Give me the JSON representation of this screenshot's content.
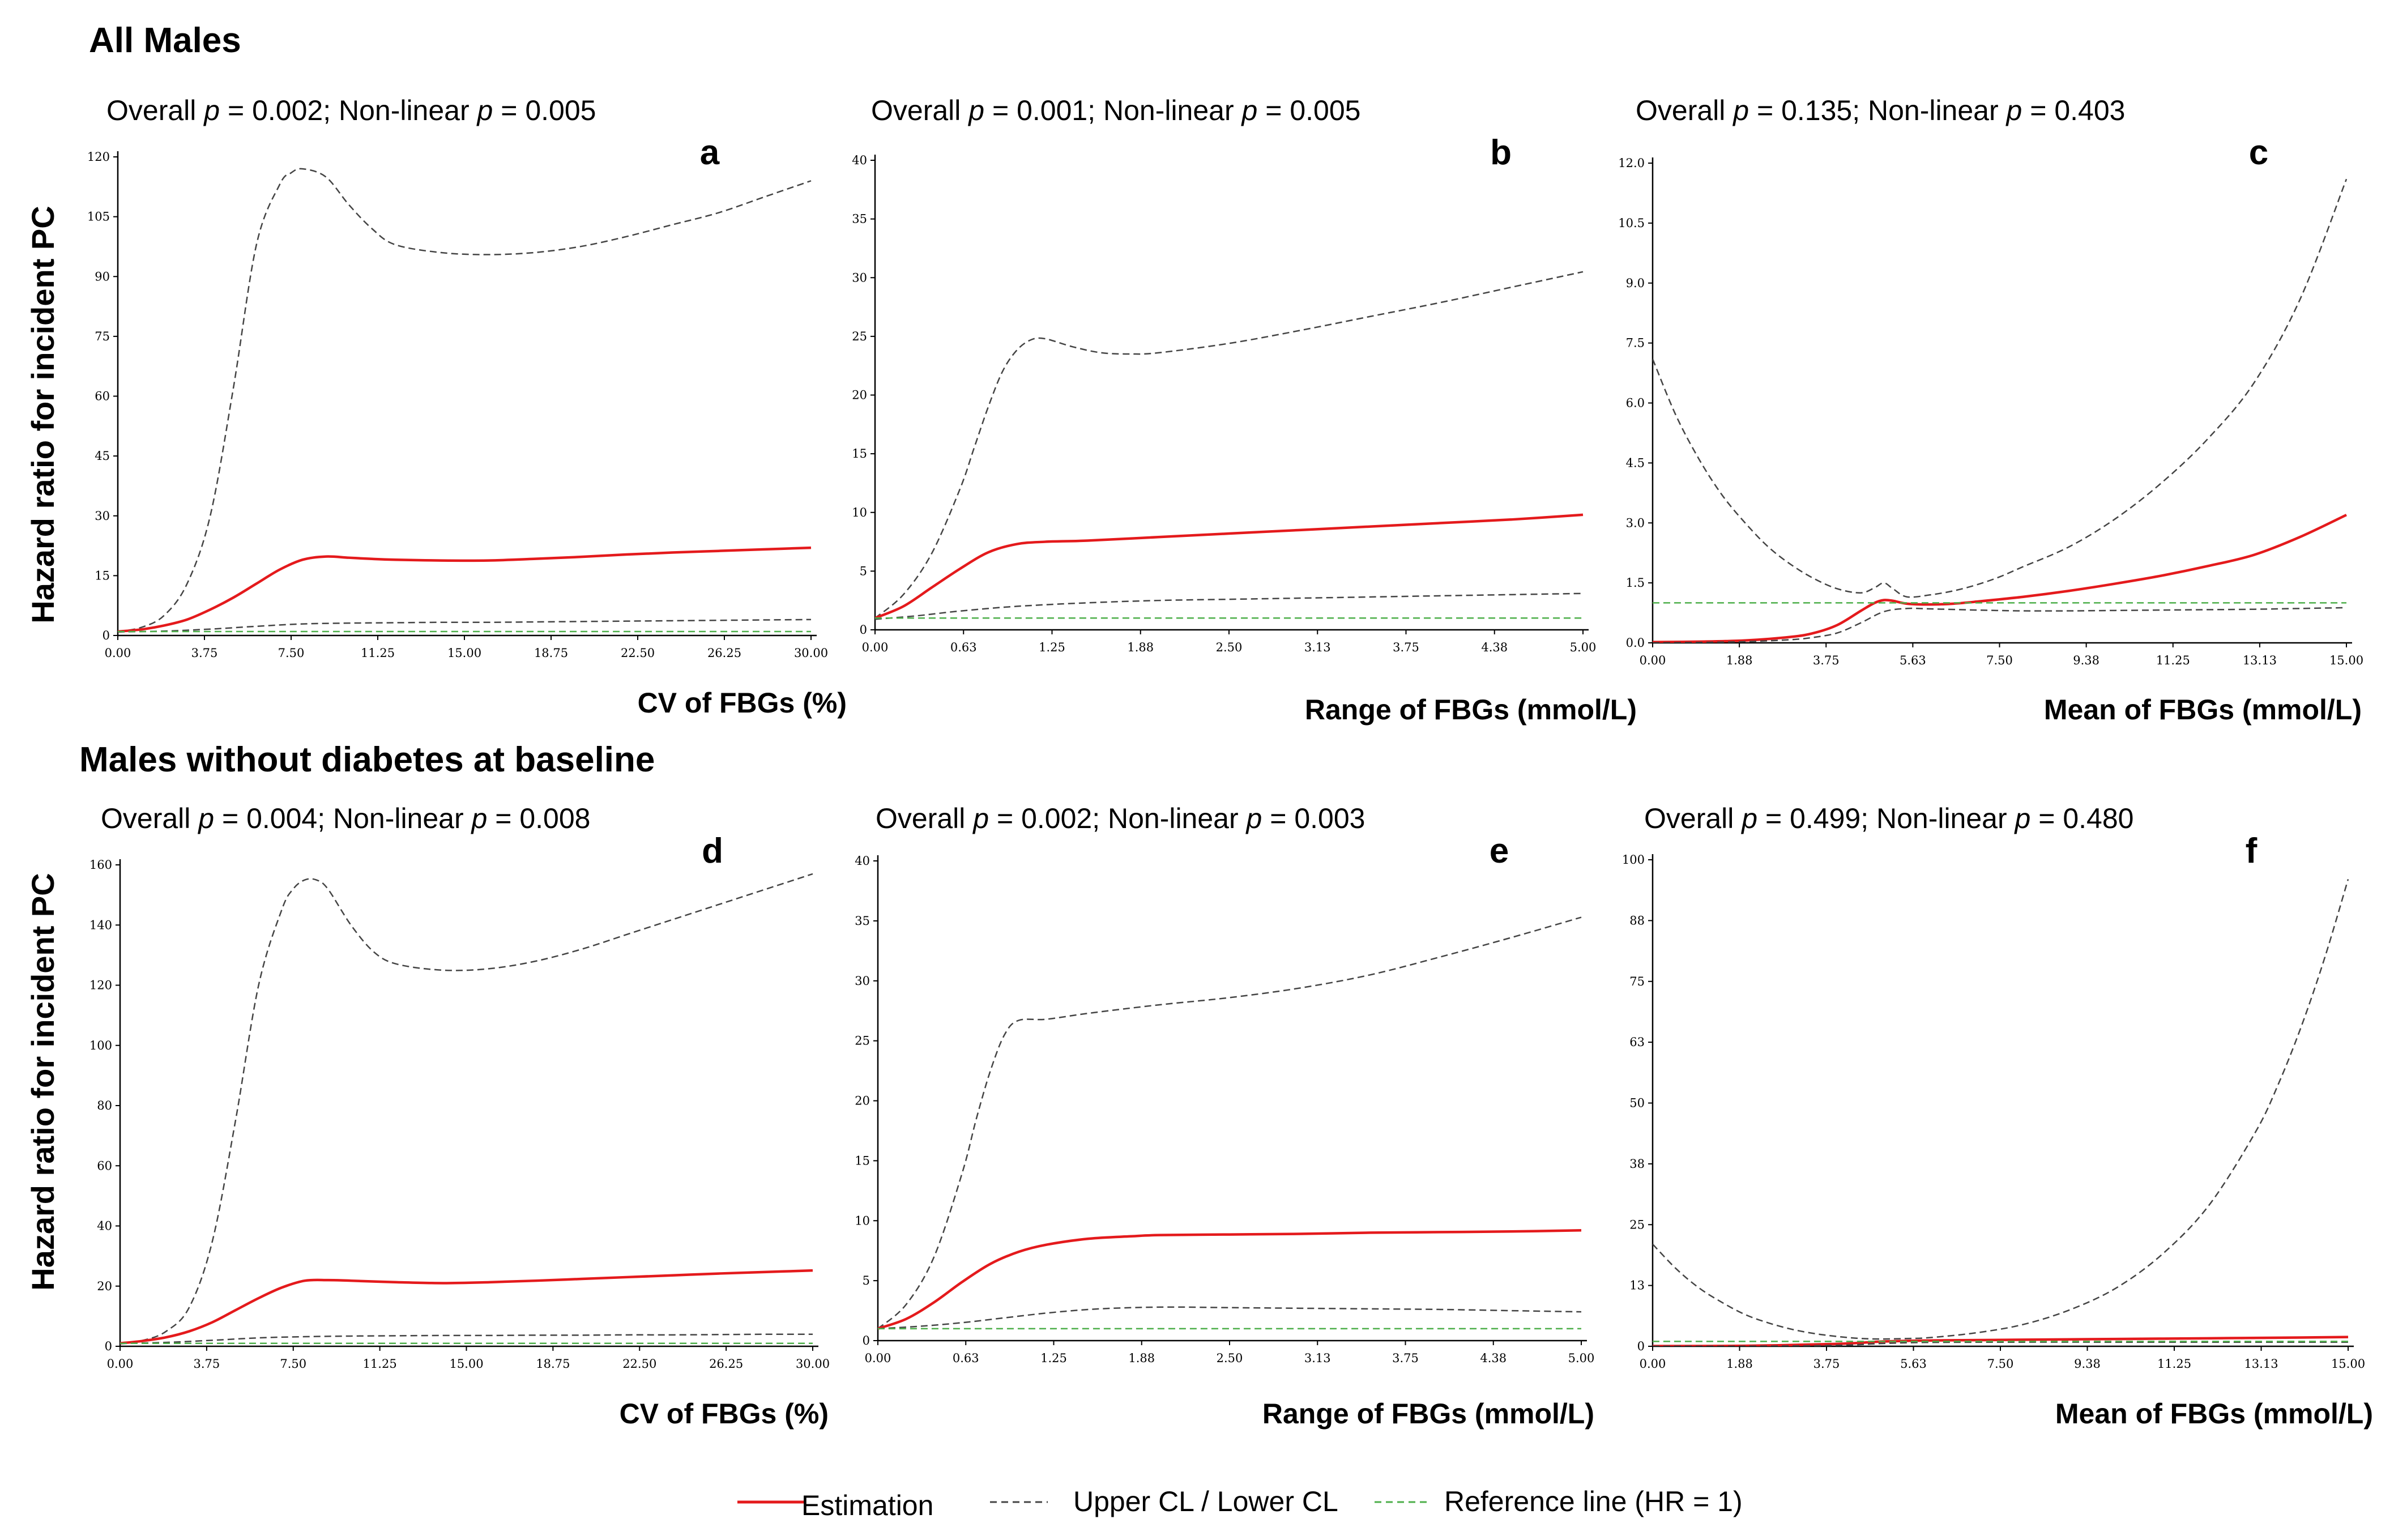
{
  "sections": {
    "top": "All Males",
    "bottom": "Males without diabetes at baseline"
  },
  "ylabel": "Hazard ratio for incident PC",
  "legend": {
    "estimation": "Estimation",
    "cl": "Upper CL / Lower CL",
    "reference": "Reference line (HR = 1)"
  },
  "colors": {
    "estimation": "#e41a1c",
    "cl": "#444444",
    "reference": "#4daf4a",
    "axis": "#000000"
  },
  "chart_data": [
    {
      "id": "a",
      "type": "line",
      "letter": "a",
      "p_overall": "0.002",
      "p_nonlinear": "0.005",
      "xlabel": "CV of FBGs (%)",
      "ylabel": "Hazard ratio for incident PC",
      "xlim": [
        0,
        30
      ],
      "ylim": [
        0,
        120
      ],
      "xticks": [
        "0.00",
        "3.75",
        "7.50",
        "11.25",
        "15.00",
        "18.75",
        "22.50",
        "26.25",
        "30.00"
      ],
      "yticks": [
        "0",
        "15",
        "30",
        "45",
        "60",
        "75",
        "90",
        "105",
        "120"
      ],
      "series": [
        {
          "name": "Upper CL",
          "x": [
            0,
            1,
            2,
            3,
            4,
            5,
            6,
            7,
            7.5,
            8,
            9,
            10,
            11,
            12,
            14,
            16,
            18,
            20,
            22,
            24,
            26,
            28,
            30
          ],
          "y": [
            1,
            2,
            5,
            13,
            30,
            62,
            98,
            113,
            116,
            117,
            115,
            108,
            102,
            98,
            96,
            95.5,
            96,
            97.5,
            100,
            103,
            106,
            110,
            114
          ]
        },
        {
          "name": "Estimation",
          "x": [
            0,
            1,
            2,
            3,
            4,
            5,
            6,
            7,
            8,
            9,
            10,
            11,
            12,
            14,
            16,
            18,
            20,
            22,
            24,
            26,
            28,
            30
          ],
          "y": [
            1,
            1.5,
            2.5,
            4,
            6.5,
            9.5,
            13,
            16.5,
            19,
            19.8,
            19.5,
            19.2,
            19,
            18.8,
            18.8,
            19.2,
            19.7,
            20.3,
            20.8,
            21.2,
            21.6,
            22
          ]
        },
        {
          "name": "Lower CL",
          "x": [
            0,
            2,
            4,
            6,
            8,
            10,
            12,
            14,
            16,
            18,
            20,
            22,
            24,
            26,
            28,
            30
          ],
          "y": [
            0.9,
            1.1,
            1.6,
            2.3,
            2.9,
            3.1,
            3.2,
            3.3,
            3.3,
            3.4,
            3.5,
            3.6,
            3.7,
            3.8,
            3.9,
            4
          ]
        },
        {
          "name": "Reference line (HR = 1)",
          "x": [
            0,
            30
          ],
          "y": [
            1,
            1
          ]
        }
      ]
    },
    {
      "id": "b",
      "type": "line",
      "letter": "b",
      "p_overall": "0.001",
      "p_nonlinear": "0.005",
      "xlabel": "Range of FBGs (mmol/L)",
      "ylabel": "Hazard ratio for incident PC",
      "xlim": [
        0,
        5
      ],
      "ylim": [
        0,
        40
      ],
      "xticks": [
        "0.00",
        "0.63",
        "1.25",
        "1.88",
        "2.50",
        "3.13",
        "3.75",
        "4.38",
        "5.00"
      ],
      "yticks": [
        "0",
        "5",
        "10",
        "15",
        "20",
        "25",
        "30",
        "35",
        "40"
      ],
      "series": [
        {
          "name": "Upper CL",
          "x": [
            0,
            0.2,
            0.4,
            0.6,
            0.7,
            0.8,
            0.9,
            1.0,
            1.1,
            1.2,
            1.4,
            1.6,
            1.8,
            2.0,
            2.5,
            3.0,
            3.5,
            4.0,
            4.5,
            5.0
          ],
          "y": [
            1,
            3,
            6.5,
            12,
            15.5,
            19,
            22,
            23.8,
            24.7,
            24.8,
            24.1,
            23.6,
            23.5,
            23.6,
            24.4,
            25.5,
            26.7,
            27.9,
            29.2,
            30.5
          ]
        },
        {
          "name": "Estimation",
          "x": [
            0,
            0.2,
            0.4,
            0.6,
            0.8,
            1.0,
            1.2,
            1.5,
            2.0,
            2.5,
            3.0,
            3.5,
            4.0,
            4.5,
            5.0
          ],
          "y": [
            1,
            2,
            3.6,
            5.2,
            6.6,
            7.3,
            7.5,
            7.6,
            7.9,
            8.2,
            8.5,
            8.8,
            9.1,
            9.4,
            9.8
          ]
        },
        {
          "name": "Lower CL",
          "x": [
            0,
            0.3,
            0.6,
            1.0,
            1.5,
            2.0,
            2.5,
            3.0,
            3.5,
            4.0,
            4.5,
            5.0
          ],
          "y": [
            0.9,
            1.2,
            1.6,
            2,
            2.3,
            2.5,
            2.6,
            2.7,
            2.8,
            2.9,
            3,
            3.1
          ]
        },
        {
          "name": "Reference line (HR = 1)",
          "x": [
            0,
            5
          ],
          "y": [
            1,
            1
          ]
        }
      ]
    },
    {
      "id": "c",
      "type": "line",
      "letter": "c",
      "p_overall": "0.135",
      "p_nonlinear": "0.403",
      "xlabel": "Mean of FBGs (mmol/L)",
      "ylabel": "Hazard ratio for incident PC",
      "xlim": [
        0,
        15
      ],
      "ylim": [
        0,
        12
      ],
      "xticks": [
        "0.00",
        "1.88",
        "3.75",
        "5.63",
        "7.50",
        "9.38",
        "11.25",
        "13.13",
        "15.00"
      ],
      "yticks": [
        "0.0",
        "1.5",
        "3.0",
        "4.5",
        "6.0",
        "7.5",
        "9.0",
        "10.5",
        "12.0"
      ],
      "series": [
        {
          "name": "Upper CL",
          "x": [
            0,
            0.5,
            1,
            1.5,
            2,
            2.5,
            3,
            3.5,
            4,
            4.5,
            4.8,
            5.0,
            5.2,
            5.5,
            6,
            6.5,
            7,
            7.5,
            8,
            9,
            10,
            11,
            12,
            13,
            14,
            15
          ],
          "y": [
            7.1,
            5.7,
            4.6,
            3.7,
            3.0,
            2.4,
            1.95,
            1.6,
            1.35,
            1.25,
            1.38,
            1.5,
            1.35,
            1.15,
            1.2,
            1.3,
            1.45,
            1.65,
            1.9,
            2.4,
            3.1,
            4.0,
            5.1,
            6.5,
            8.6,
            11.6
          ]
        },
        {
          "name": "Estimation",
          "x": [
            0,
            1,
            2,
            3,
            3.5,
            4,
            4.5,
            4.8,
            5.0,
            5.2,
            5.5,
            6,
            6.5,
            7,
            8,
            9,
            10,
            11,
            12,
            13,
            14,
            15
          ],
          "y": [
            0.02,
            0.03,
            0.06,
            0.15,
            0.25,
            0.45,
            0.8,
            1.0,
            1.07,
            1.05,
            0.98,
            0.96,
            0.98,
            1.03,
            1.15,
            1.3,
            1.48,
            1.68,
            1.92,
            2.2,
            2.65,
            3.2
          ]
        },
        {
          "name": "Lower CL",
          "x": [
            0,
            1,
            2,
            3,
            3.5,
            4,
            4.5,
            5.0,
            5.5,
            6,
            7,
            8,
            9,
            10,
            11,
            12,
            13,
            14,
            15
          ],
          "y": [
            0,
            0.01,
            0.03,
            0.08,
            0.14,
            0.25,
            0.5,
            0.78,
            0.86,
            0.85,
            0.82,
            0.8,
            0.8,
            0.81,
            0.82,
            0.83,
            0.84,
            0.86,
            0.88
          ]
        },
        {
          "name": "Reference line (HR = 1)",
          "x": [
            0,
            15
          ],
          "y": [
            1,
            1
          ]
        }
      ]
    },
    {
      "id": "d",
      "type": "line",
      "letter": "d",
      "p_overall": "0.004",
      "p_nonlinear": "0.008",
      "xlabel": "CV of FBGs (%)",
      "ylabel": "Hazard ratio for incident PC",
      "xlim": [
        0,
        30
      ],
      "ylim": [
        0,
        160
      ],
      "xticks": [
        "0.00",
        "3.75",
        "7.50",
        "11.25",
        "15.00",
        "18.75",
        "22.50",
        "26.25",
        "30.00"
      ],
      "yticks": [
        "0",
        "20",
        "40",
        "60",
        "80",
        "100",
        "120",
        "140",
        "160"
      ],
      "series": [
        {
          "name": "Upper CL",
          "x": [
            0,
            1,
            2,
            3,
            4,
            5,
            6,
            7,
            7.5,
            8,
            8.5,
            9,
            10,
            11,
            12,
            14,
            16,
            18,
            20,
            22,
            24,
            26,
            28,
            30
          ],
          "y": [
            1,
            2,
            5,
            13,
            35,
            75,
            120,
            145,
            152,
            155,
            155,
            152,
            140,
            131,
            127,
            125,
            125.5,
            128,
            132,
            137,
            142,
            147,
            152,
            157
          ]
        },
        {
          "name": "Estimation",
          "x": [
            0,
            1,
            2,
            3,
            4,
            5,
            6,
            7,
            8,
            9,
            10,
            12,
            14,
            16,
            18,
            20,
            22,
            24,
            26,
            28,
            30
          ],
          "y": [
            1,
            1.8,
            3,
            5,
            8,
            12,
            16,
            19.5,
            21.8,
            22,
            21.8,
            21.3,
            21,
            21.3,
            21.8,
            22.4,
            23,
            23.6,
            24.2,
            24.7,
            25.2
          ]
        },
        {
          "name": "Lower CL",
          "x": [
            0,
            2,
            4,
            6,
            8,
            10,
            12,
            14,
            16,
            18,
            20,
            22,
            24,
            26,
            28,
            30
          ],
          "y": [
            0.9,
            1.3,
            2,
            2.8,
            3.2,
            3.4,
            3.5,
            3.6,
            3.6,
            3.7,
            3.7,
            3.8,
            3.8,
            3.9,
            4,
            4
          ]
        },
        {
          "name": "Reference line (HR = 1)",
          "x": [
            0,
            30
          ],
          "y": [
            1,
            1
          ]
        }
      ]
    },
    {
      "id": "e",
      "type": "line",
      "letter": "e",
      "p_overall": "0.002",
      "p_nonlinear": "0.003",
      "xlabel": "Range of FBGs (mmol/L)",
      "ylabel": "Hazard ratio for incident PC",
      "xlim": [
        0,
        5
      ],
      "ylim": [
        0,
        40
      ],
      "xticks": [
        "0.00",
        "0.63",
        "1.25",
        "1.88",
        "2.50",
        "3.13",
        "3.75",
        "4.38",
        "5.00"
      ],
      "yticks": [
        "0",
        "5",
        "10",
        "15",
        "20",
        "25",
        "30",
        "35",
        "40"
      ],
      "series": [
        {
          "name": "Upper CL",
          "x": [
            0,
            0.2,
            0.4,
            0.6,
            0.7,
            0.8,
            0.9,
            1.0,
            1.2,
            1.5,
            2.0,
            2.5,
            3.0,
            3.5,
            4.0,
            4.5,
            5.0
          ],
          "y": [
            1,
            3,
            7,
            14,
            18.5,
            22.5,
            25.5,
            26.7,
            26.8,
            27.3,
            28,
            28.6,
            29.4,
            30.5,
            32,
            33.6,
            35.3
          ]
        },
        {
          "name": "Estimation",
          "x": [
            0,
            0.2,
            0.4,
            0.6,
            0.8,
            1.0,
            1.2,
            1.5,
            1.8,
            2.0,
            2.5,
            3.0,
            3.5,
            4.0,
            4.5,
            5.0
          ],
          "y": [
            1,
            1.8,
            3.2,
            4.9,
            6.4,
            7.4,
            8,
            8.5,
            8.7,
            8.8,
            8.85,
            8.9,
            9,
            9.05,
            9.1,
            9.2
          ]
        },
        {
          "name": "Lower CL",
          "x": [
            0,
            0.3,
            0.6,
            0.9,
            1.2,
            1.5,
            1.8,
            2.1,
            2.5,
            3.0,
            3.5,
            4.0,
            4.5,
            5.0
          ],
          "y": [
            1,
            1.2,
            1.5,
            1.9,
            2.3,
            2.6,
            2.75,
            2.8,
            2.75,
            2.7,
            2.65,
            2.6,
            2.5,
            2.4
          ]
        },
        {
          "name": "Reference line (HR = 1)",
          "x": [
            0,
            5
          ],
          "y": [
            1,
            1
          ]
        }
      ]
    },
    {
      "id": "f",
      "type": "line",
      "letter": "f",
      "p_overall": "0.499",
      "p_nonlinear": "0.480",
      "xlabel": "Mean of FBGs (mmol/L)",
      "ylabel": "Hazard ratio for incident PC",
      "xlim": [
        0,
        15
      ],
      "ylim": [
        0,
        100
      ],
      "xticks": [
        "0.00",
        "1.88",
        "3.75",
        "5.63",
        "7.50",
        "9.38",
        "11.25",
        "13.13",
        "15.00"
      ],
      "yticks": [
        "0",
        "13",
        "25",
        "38",
        "50",
        "63",
        "75",
        "88",
        "100"
      ],
      "series": [
        {
          "name": "Upper CL",
          "x": [
            0,
            0.5,
            1,
            1.5,
            2,
            2.5,
            3,
            3.5,
            4,
            4.5,
            5,
            5.5,
            6,
            7,
            8,
            9,
            10,
            11,
            12,
            13,
            13.5,
            14,
            14.5,
            15
          ],
          "y": [
            21,
            16,
            12,
            9,
            6.5,
            4.8,
            3.5,
            2.6,
            2.0,
            1.6,
            1.5,
            1.6,
            1.8,
            2.8,
            4.5,
            7.5,
            12,
            19,
            29,
            44,
            54,
            66,
            80,
            96
          ]
        },
        {
          "name": "Estimation",
          "x": [
            0,
            2,
            4,
            5,
            6,
            8,
            10,
            12,
            14,
            15
          ],
          "y": [
            0.05,
            0.1,
            0.5,
            1,
            1.2,
            1.35,
            1.5,
            1.65,
            1.8,
            1.9
          ]
        },
        {
          "name": "Lower CL",
          "x": [
            0,
            2,
            4,
            5,
            6,
            8,
            10,
            12,
            14,
            15
          ],
          "y": [
            0,
            0.02,
            0.2,
            0.6,
            0.8,
            0.85,
            0.85,
            0.85,
            0.85,
            0.85
          ]
        },
        {
          "name": "Reference line (HR = 1)",
          "x": [
            0,
            15
          ],
          "y": [
            1,
            1
          ]
        }
      ]
    }
  ]
}
